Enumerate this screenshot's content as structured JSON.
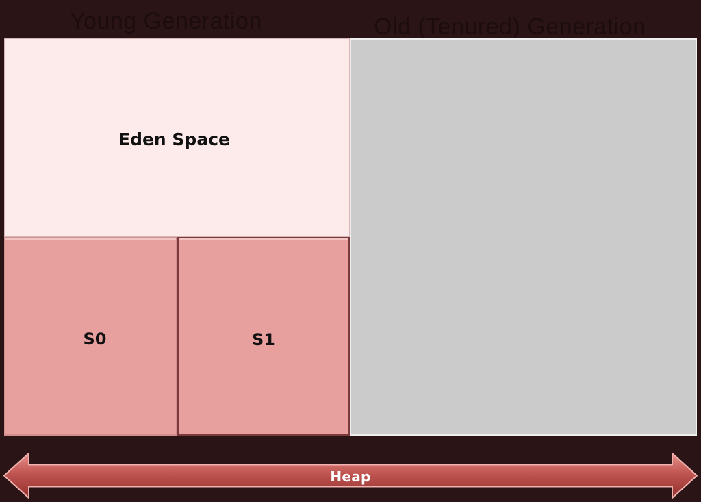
{
  "headings": {
    "young": "Young Generation",
    "old": "Old (Tenured) Generation"
  },
  "regions": {
    "eden": "Eden Space",
    "s0": "S0",
    "s1": "S1"
  },
  "arrow": {
    "label": "Heap"
  }
}
